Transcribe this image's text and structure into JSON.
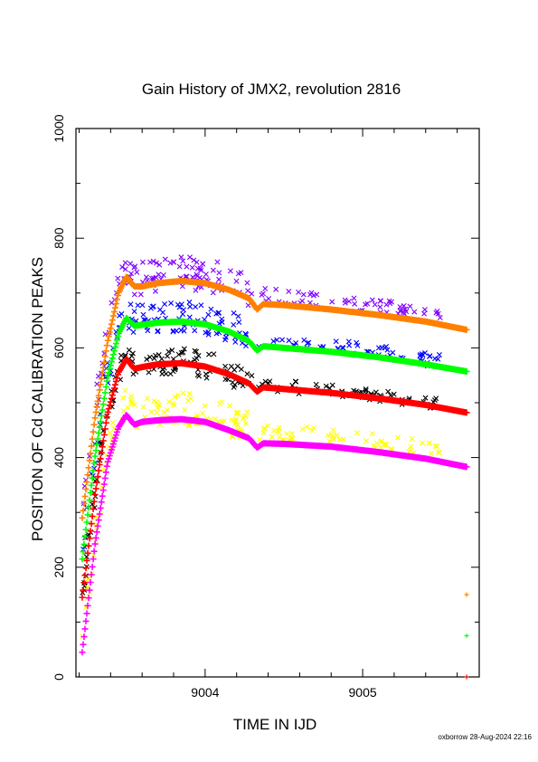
{
  "chart_data": {
    "type": "scatter",
    "title": "Gain History of JMX2, revolution 2816",
    "xlabel": "TIME IN IJD",
    "ylabel": "POSITION OF Cd CALIBRATION PEAKS",
    "xlim": [
      9003.18,
      9005.74
    ],
    "ylim": [
      0,
      1000
    ],
    "x_ticks": [
      "9004",
      "9005"
    ],
    "y_ticks": [
      "0",
      "200",
      "400",
      "600",
      "800",
      "1000"
    ],
    "grid": false,
    "legend": "none",
    "fit_series": [
      {
        "color": "#ff8000",
        "x": [
          9003.22,
          9003.3,
          9003.38,
          9003.45,
          9003.5,
          9003.55,
          9003.6,
          9003.7,
          9003.85,
          9004.0,
          9004.15,
          9004.28,
          9004.33,
          9004.37,
          9004.5,
          9004.8,
          9005.1,
          9005.4,
          9005.66
        ],
        "y": [
          290,
          470,
          610,
          700,
          730,
          712,
          712,
          718,
          722,
          718,
          706,
          690,
          670,
          680,
          678,
          670,
          660,
          648,
          633
        ]
      },
      {
        "color": "#00ff00",
        "x": [
          9003.22,
          9003.3,
          9003.38,
          9003.45,
          9003.5,
          9003.55,
          9003.6,
          9003.7,
          9003.85,
          9004.0,
          9004.15,
          9004.28,
          9004.33,
          9004.37,
          9004.5,
          9004.8,
          9005.1,
          9005.4,
          9005.66
        ],
        "y": [
          215,
          400,
          545,
          625,
          655,
          640,
          642,
          646,
          648,
          643,
          630,
          612,
          595,
          603,
          600,
          593,
          583,
          570,
          557
        ]
      },
      {
        "color": "#ff0000",
        "x": [
          9003.22,
          9003.3,
          9003.38,
          9003.45,
          9003.5,
          9003.55,
          9003.6,
          9003.7,
          9003.85,
          9004.0,
          9004.15,
          9004.28,
          9004.33,
          9004.37,
          9004.5,
          9004.8,
          9005.1,
          9005.4,
          9005.66
        ],
        "y": [
          145,
          330,
          480,
          555,
          580,
          562,
          565,
          570,
          572,
          566,
          552,
          535,
          520,
          528,
          525,
          518,
          508,
          496,
          482
        ]
      },
      {
        "color": "#ff00ff",
        "x": [
          9003.22,
          9003.3,
          9003.38,
          9003.45,
          9003.5,
          9003.55,
          9003.6,
          9003.7,
          9003.85,
          9004.0,
          9004.15,
          9004.28,
          9004.33,
          9004.37,
          9004.5,
          9004.8,
          9005.1,
          9005.4,
          9005.66
        ],
        "y": [
          45,
          240,
          390,
          455,
          478,
          460,
          465,
          468,
          470,
          465,
          450,
          435,
          418,
          426,
          425,
          420,
          410,
          398,
          383
        ]
      }
    ],
    "scatter_series": [
      {
        "color": "#8000ff",
        "marker": "x",
        "fit": 0,
        "offset": 15,
        "spread": 30
      },
      {
        "color": "#0000ff",
        "marker": "x",
        "fit": 1,
        "offset": 10,
        "spread": 28
      },
      {
        "color": "#000000",
        "marker": "x",
        "fit": 2,
        "offset": 5,
        "spread": 25
      },
      {
        "color": "#ffff00",
        "marker": "x",
        "fit": 3,
        "offset": 20,
        "spread": 30
      }
    ],
    "outlier_markers": [
      {
        "color": "#ff8000",
        "marker": "+",
        "x": 9005.66,
        "y": 150
      },
      {
        "color": "#00ff00",
        "marker": "+",
        "x": 9005.66,
        "y": 75
      },
      {
        "color": "#ff0000",
        "marker": "+",
        "x": 9005.66,
        "y": 0
      }
    ]
  },
  "footer": {
    "text": "oxborrow 28-Aug-2024 22:16"
  }
}
